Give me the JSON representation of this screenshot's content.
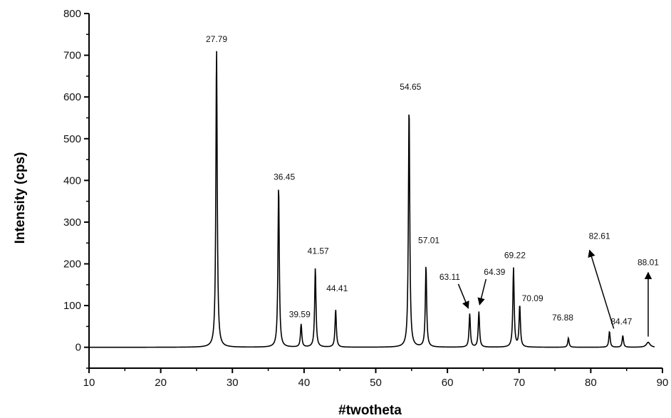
{
  "chart_data": {
    "type": "line",
    "title": "",
    "xlabel": "#twotheta",
    "ylabel": "Intensity (cps)",
    "xlim": [
      10,
      90
    ],
    "ylim": [
      -50,
      800
    ],
    "xticks": [
      10,
      20,
      30,
      40,
      50,
      60,
      70,
      80,
      90
    ],
    "yticks": [
      0,
      100,
      200,
      300,
      400,
      500,
      600,
      700,
      800
    ],
    "grid": false,
    "legend": "none",
    "line_color": "#000000",
    "peaks": [
      {
        "x": 27.79,
        "y": 718,
        "label": "27.79"
      },
      {
        "x": 36.45,
        "y": 388,
        "label": "36.45"
      },
      {
        "x": 39.59,
        "y": 55,
        "label": "39.59"
      },
      {
        "x": 41.57,
        "y": 190,
        "label": "41.57"
      },
      {
        "x": 44.41,
        "y": 90,
        "label": "44.41"
      },
      {
        "x": 54.65,
        "y": 580,
        "label": "54.65"
      },
      {
        "x": 57.01,
        "y": 195,
        "label": "57.01"
      },
      {
        "x": 63.11,
        "y": 80,
        "label": "63.11"
      },
      {
        "x": 64.39,
        "y": 85,
        "label": "64.39"
      },
      {
        "x": 69.22,
        "y": 190,
        "label": "69.22"
      },
      {
        "x": 70.09,
        "y": 100,
        "label": "70.09"
      },
      {
        "x": 76.88,
        "y": 22,
        "label": "76.88"
      },
      {
        "x": 82.61,
        "y": 38,
        "label": "82.61"
      },
      {
        "x": 84.47,
        "y": 28,
        "label": "84.47"
      },
      {
        "x": 88.01,
        "y": 12,
        "label": "88.01"
      }
    ]
  }
}
